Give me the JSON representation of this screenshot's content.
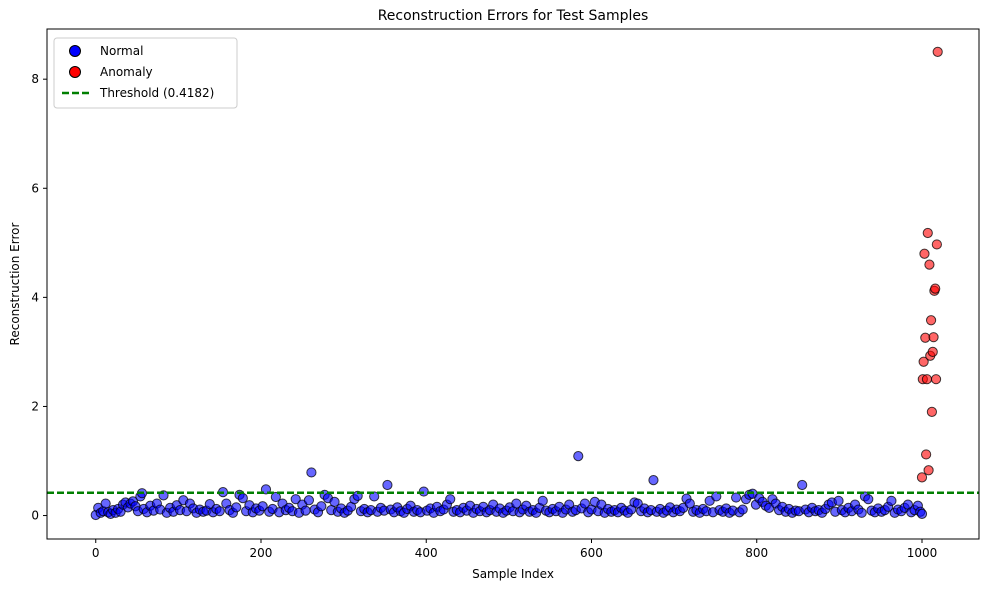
{
  "chart_data": {
    "type": "scatter",
    "title": "Reconstruction Errors for Test Samples",
    "xlabel": "Sample Index",
    "ylabel": "Reconstruction Error",
    "xlim": [
      -59,
      1069
    ],
    "ylim": [
      -0.43,
      8.92
    ],
    "xticks": [
      0,
      200,
      400,
      600,
      800,
      1000
    ],
    "yticks": [
      0,
      2,
      4,
      6,
      8
    ],
    "grid": false,
    "legend_position": "top-left",
    "threshold": {
      "label": "Threshold (0.4182)",
      "value": 0.4182,
      "color": "#007f00"
    },
    "series": [
      {
        "name": "Normal",
        "color": "#0000ff",
        "points": [
          [
            0,
            0.01
          ],
          [
            3,
            0.14
          ],
          [
            6,
            0.05
          ],
          [
            9,
            0.08
          ],
          [
            12,
            0.22
          ],
          [
            15,
            0.06
          ],
          [
            18,
            0.03
          ],
          [
            21,
            0.1
          ],
          [
            24,
            0.05
          ],
          [
            27,
            0.12
          ],
          [
            30,
            0.07
          ],
          [
            33,
            0.2
          ],
          [
            36,
            0.24
          ],
          [
            39,
            0.15
          ],
          [
            42,
            0.22
          ],
          [
            45,
            0.26
          ],
          [
            48,
            0.17
          ],
          [
            51,
            0.08
          ],
          [
            54,
            0.35
          ],
          [
            56,
            0.41
          ],
          [
            58,
            0.12
          ],
          [
            62,
            0.06
          ],
          [
            66,
            0.18
          ],
          [
            70,
            0.09
          ],
          [
            74,
            0.22
          ],
          [
            78,
            0.11
          ],
          [
            82,
            0.37
          ],
          [
            86,
            0.05
          ],
          [
            90,
            0.14
          ],
          [
            94,
            0.07
          ],
          [
            98,
            0.19
          ],
          [
            102,
            0.1
          ],
          [
            106,
            0.28
          ],
          [
            110,
            0.08
          ],
          [
            114,
            0.22
          ],
          [
            118,
            0.13
          ],
          [
            122,
            0.05
          ],
          [
            126,
            0.11
          ],
          [
            130,
            0.07
          ],
          [
            134,
            0.09
          ],
          [
            138,
            0.21
          ],
          [
            142,
            0.06
          ],
          [
            146,
            0.12
          ],
          [
            150,
            0.08
          ],
          [
            154,
            0.43
          ],
          [
            158,
            0.22
          ],
          [
            162,
            0.1
          ],
          [
            166,
            0.05
          ],
          [
            170,
            0.15
          ],
          [
            174,
            0.38
          ],
          [
            178,
            0.32
          ],
          [
            182,
            0.08
          ],
          [
            186,
            0.19
          ],
          [
            190,
            0.06
          ],
          [
            194,
            0.13
          ],
          [
            198,
            0.09
          ],
          [
            202,
            0.17
          ],
          [
            206,
            0.48
          ],
          [
            210,
            0.07
          ],
          [
            214,
            0.12
          ],
          [
            218,
            0.34
          ],
          [
            222,
            0.06
          ],
          [
            226,
            0.22
          ],
          [
            230,
            0.1
          ],
          [
            234,
            0.14
          ],
          [
            238,
            0.08
          ],
          [
            242,
            0.3
          ],
          [
            246,
            0.05
          ],
          [
            250,
            0.2
          ],
          [
            254,
            0.09
          ],
          [
            258,
            0.28
          ],
          [
            261,
            0.79
          ],
          [
            265,
            0.11
          ],
          [
            269,
            0.06
          ],
          [
            273,
            0.17
          ],
          [
            277,
            0.38
          ],
          [
            281,
            0.32
          ],
          [
            285,
            0.1
          ],
          [
            289,
            0.25
          ],
          [
            293,
            0.07
          ],
          [
            297,
            0.13
          ],
          [
            301,
            0.05
          ],
          [
            305,
            0.09
          ],
          [
            309,
            0.16
          ],
          [
            313,
            0.3
          ],
          [
            317,
            0.36
          ],
          [
            321,
            0.08
          ],
          [
            325,
            0.12
          ],
          [
            329,
            0.06
          ],
          [
            333,
            0.1
          ],
          [
            337,
            0.35
          ],
          [
            341,
            0.07
          ],
          [
            345,
            0.14
          ],
          [
            349,
            0.09
          ],
          [
            353,
            0.56
          ],
          [
            357,
            0.11
          ],
          [
            361,
            0.06
          ],
          [
            365,
            0.15
          ],
          [
            369,
            0.08
          ],
          [
            373,
            0.05
          ],
          [
            377,
            0.12
          ],
          [
            381,
            0.18
          ],
          [
            385,
            0.07
          ],
          [
            389,
            0.1
          ],
          [
            393,
            0.06
          ],
          [
            397,
            0.44
          ],
          [
            401,
            0.09
          ],
          [
            405,
            0.13
          ],
          [
            409,
            0.05
          ],
          [
            413,
            0.16
          ],
          [
            417,
            0.08
          ],
          [
            421,
            0.11
          ],
          [
            425,
            0.2
          ],
          [
            429,
            0.3
          ],
          [
            433,
            0.07
          ],
          [
            437,
            0.1
          ],
          [
            441,
            0.06
          ],
          [
            445,
            0.14
          ],
          [
            449,
            0.09
          ],
          [
            453,
            0.18
          ],
          [
            457,
            0.05
          ],
          [
            461,
            0.12
          ],
          [
            465,
            0.08
          ],
          [
            469,
            0.16
          ],
          [
            473,
            0.06
          ],
          [
            477,
            0.1
          ],
          [
            481,
            0.2
          ],
          [
            485,
            0.07
          ],
          [
            489,
            0.13
          ],
          [
            493,
            0.05
          ],
          [
            497,
            0.09
          ],
          [
            501,
            0.15
          ],
          [
            505,
            0.08
          ],
          [
            509,
            0.22
          ],
          [
            513,
            0.06
          ],
          [
            517,
            0.11
          ],
          [
            521,
            0.18
          ],
          [
            525,
            0.07
          ],
          [
            529,
            0.1
          ],
          [
            533,
            0.05
          ],
          [
            537,
            0.14
          ],
          [
            541,
            0.27
          ],
          [
            545,
            0.09
          ],
          [
            549,
            0.06
          ],
          [
            553,
            0.12
          ],
          [
            557,
            0.08
          ],
          [
            561,
            0.16
          ],
          [
            565,
            0.05
          ],
          [
            569,
            0.11
          ],
          [
            573,
            0.2
          ],
          [
            577,
            0.07
          ],
          [
            581,
            0.1
          ],
          [
            584,
            1.09
          ],
          [
            588,
            0.13
          ],
          [
            592,
            0.22
          ],
          [
            596,
            0.06
          ],
          [
            600,
            0.11
          ],
          [
            604,
            0.25
          ],
          [
            608,
            0.08
          ],
          [
            612,
            0.2
          ],
          [
            616,
            0.05
          ],
          [
            620,
            0.12
          ],
          [
            624,
            0.07
          ],
          [
            628,
            0.1
          ],
          [
            632,
            0.06
          ],
          [
            636,
            0.14
          ],
          [
            640,
            0.09
          ],
          [
            644,
            0.05
          ],
          [
            648,
            0.11
          ],
          [
            652,
            0.24
          ],
          [
            656,
            0.22
          ],
          [
            660,
            0.08
          ],
          [
            664,
            0.13
          ],
          [
            668,
            0.06
          ],
          [
            672,
            0.1
          ],
          [
            675,
            0.65
          ],
          [
            679,
            0.07
          ],
          [
            683,
            0.12
          ],
          [
            687,
            0.05
          ],
          [
            691,
            0.09
          ],
          [
            695,
            0.15
          ],
          [
            699,
            0.06
          ],
          [
            703,
            0.11
          ],
          [
            707,
            0.08
          ],
          [
            711,
            0.14
          ],
          [
            715,
            0.31
          ],
          [
            719,
            0.22
          ],
          [
            723,
            0.07
          ],
          [
            727,
            0.1
          ],
          [
            731,
            0.05
          ],
          [
            735,
            0.12
          ],
          [
            739,
            0.08
          ],
          [
            743,
            0.27
          ],
          [
            747,
            0.06
          ],
          [
            751,
            0.35
          ],
          [
            755,
            0.1
          ],
          [
            759,
            0.07
          ],
          [
            763,
            0.13
          ],
          [
            767,
            0.05
          ],
          [
            771,
            0.09
          ],
          [
            775,
            0.33
          ],
          [
            779,
            0.06
          ],
          [
            783,
            0.11
          ],
          [
            787,
            0.3
          ],
          [
            791,
            0.38
          ],
          [
            795,
            0.4
          ],
          [
            799,
            0.2
          ],
          [
            803,
            0.32
          ],
          [
            807,
            0.25
          ],
          [
            811,
            0.18
          ],
          [
            815,
            0.14
          ],
          [
            819,
            0.3
          ],
          [
            823,
            0.22
          ],
          [
            827,
            0.1
          ],
          [
            831,
            0.16
          ],
          [
            835,
            0.07
          ],
          [
            839,
            0.12
          ],
          [
            843,
            0.05
          ],
          [
            847,
            0.09
          ],
          [
            851,
            0.08
          ],
          [
            855,
            0.56
          ],
          [
            859,
            0.11
          ],
          [
            863,
            0.06
          ],
          [
            867,
            0.14
          ],
          [
            871,
            0.08
          ],
          [
            875,
            0.1
          ],
          [
            879,
            0.05
          ],
          [
            883,
            0.12
          ],
          [
            887,
            0.2
          ],
          [
            891,
            0.24
          ],
          [
            895,
            0.07
          ],
          [
            899,
            0.27
          ],
          [
            903,
            0.1
          ],
          [
            907,
            0.06
          ],
          [
            911,
            0.14
          ],
          [
            915,
            0.08
          ],
          [
            919,
            0.2
          ],
          [
            923,
            0.11
          ],
          [
            927,
            0.05
          ],
          [
            931,
            0.35
          ],
          [
            935,
            0.3
          ],
          [
            939,
            0.09
          ],
          [
            943,
            0.06
          ],
          [
            947,
            0.13
          ],
          [
            951,
            0.07
          ],
          [
            955,
            0.1
          ],
          [
            959,
            0.16
          ],
          [
            963,
            0.27
          ],
          [
            967,
            0.05
          ],
          [
            971,
            0.11
          ],
          [
            975,
            0.08
          ],
          [
            979,
            0.14
          ],
          [
            983,
            0.2
          ],
          [
            987,
            0.06
          ],
          [
            991,
            0.1
          ],
          [
            995,
            0.18
          ],
          [
            998,
            0.07
          ],
          [
            1000,
            0.03
          ]
        ]
      },
      {
        "name": "Anomaly",
        "color": "#ff0000",
        "points": [
          [
            1000,
            0.7
          ],
          [
            1001,
            2.5
          ],
          [
            1002,
            2.82
          ],
          [
            1003,
            4.8
          ],
          [
            1004,
            3.26
          ],
          [
            1005,
            1.12
          ],
          [
            1006,
            2.5
          ],
          [
            1007,
            5.18
          ],
          [
            1008,
            0.83
          ],
          [
            1009,
            4.6
          ],
          [
            1010,
            2.93
          ],
          [
            1011,
            3.58
          ],
          [
            1012,
            1.9
          ],
          [
            1013,
            3.0
          ],
          [
            1014,
            3.27
          ],
          [
            1015,
            4.12
          ],
          [
            1016,
            4.16
          ],
          [
            1017,
            2.5
          ],
          [
            1018,
            4.97
          ],
          [
            1019,
            8.5
          ]
        ]
      }
    ]
  }
}
